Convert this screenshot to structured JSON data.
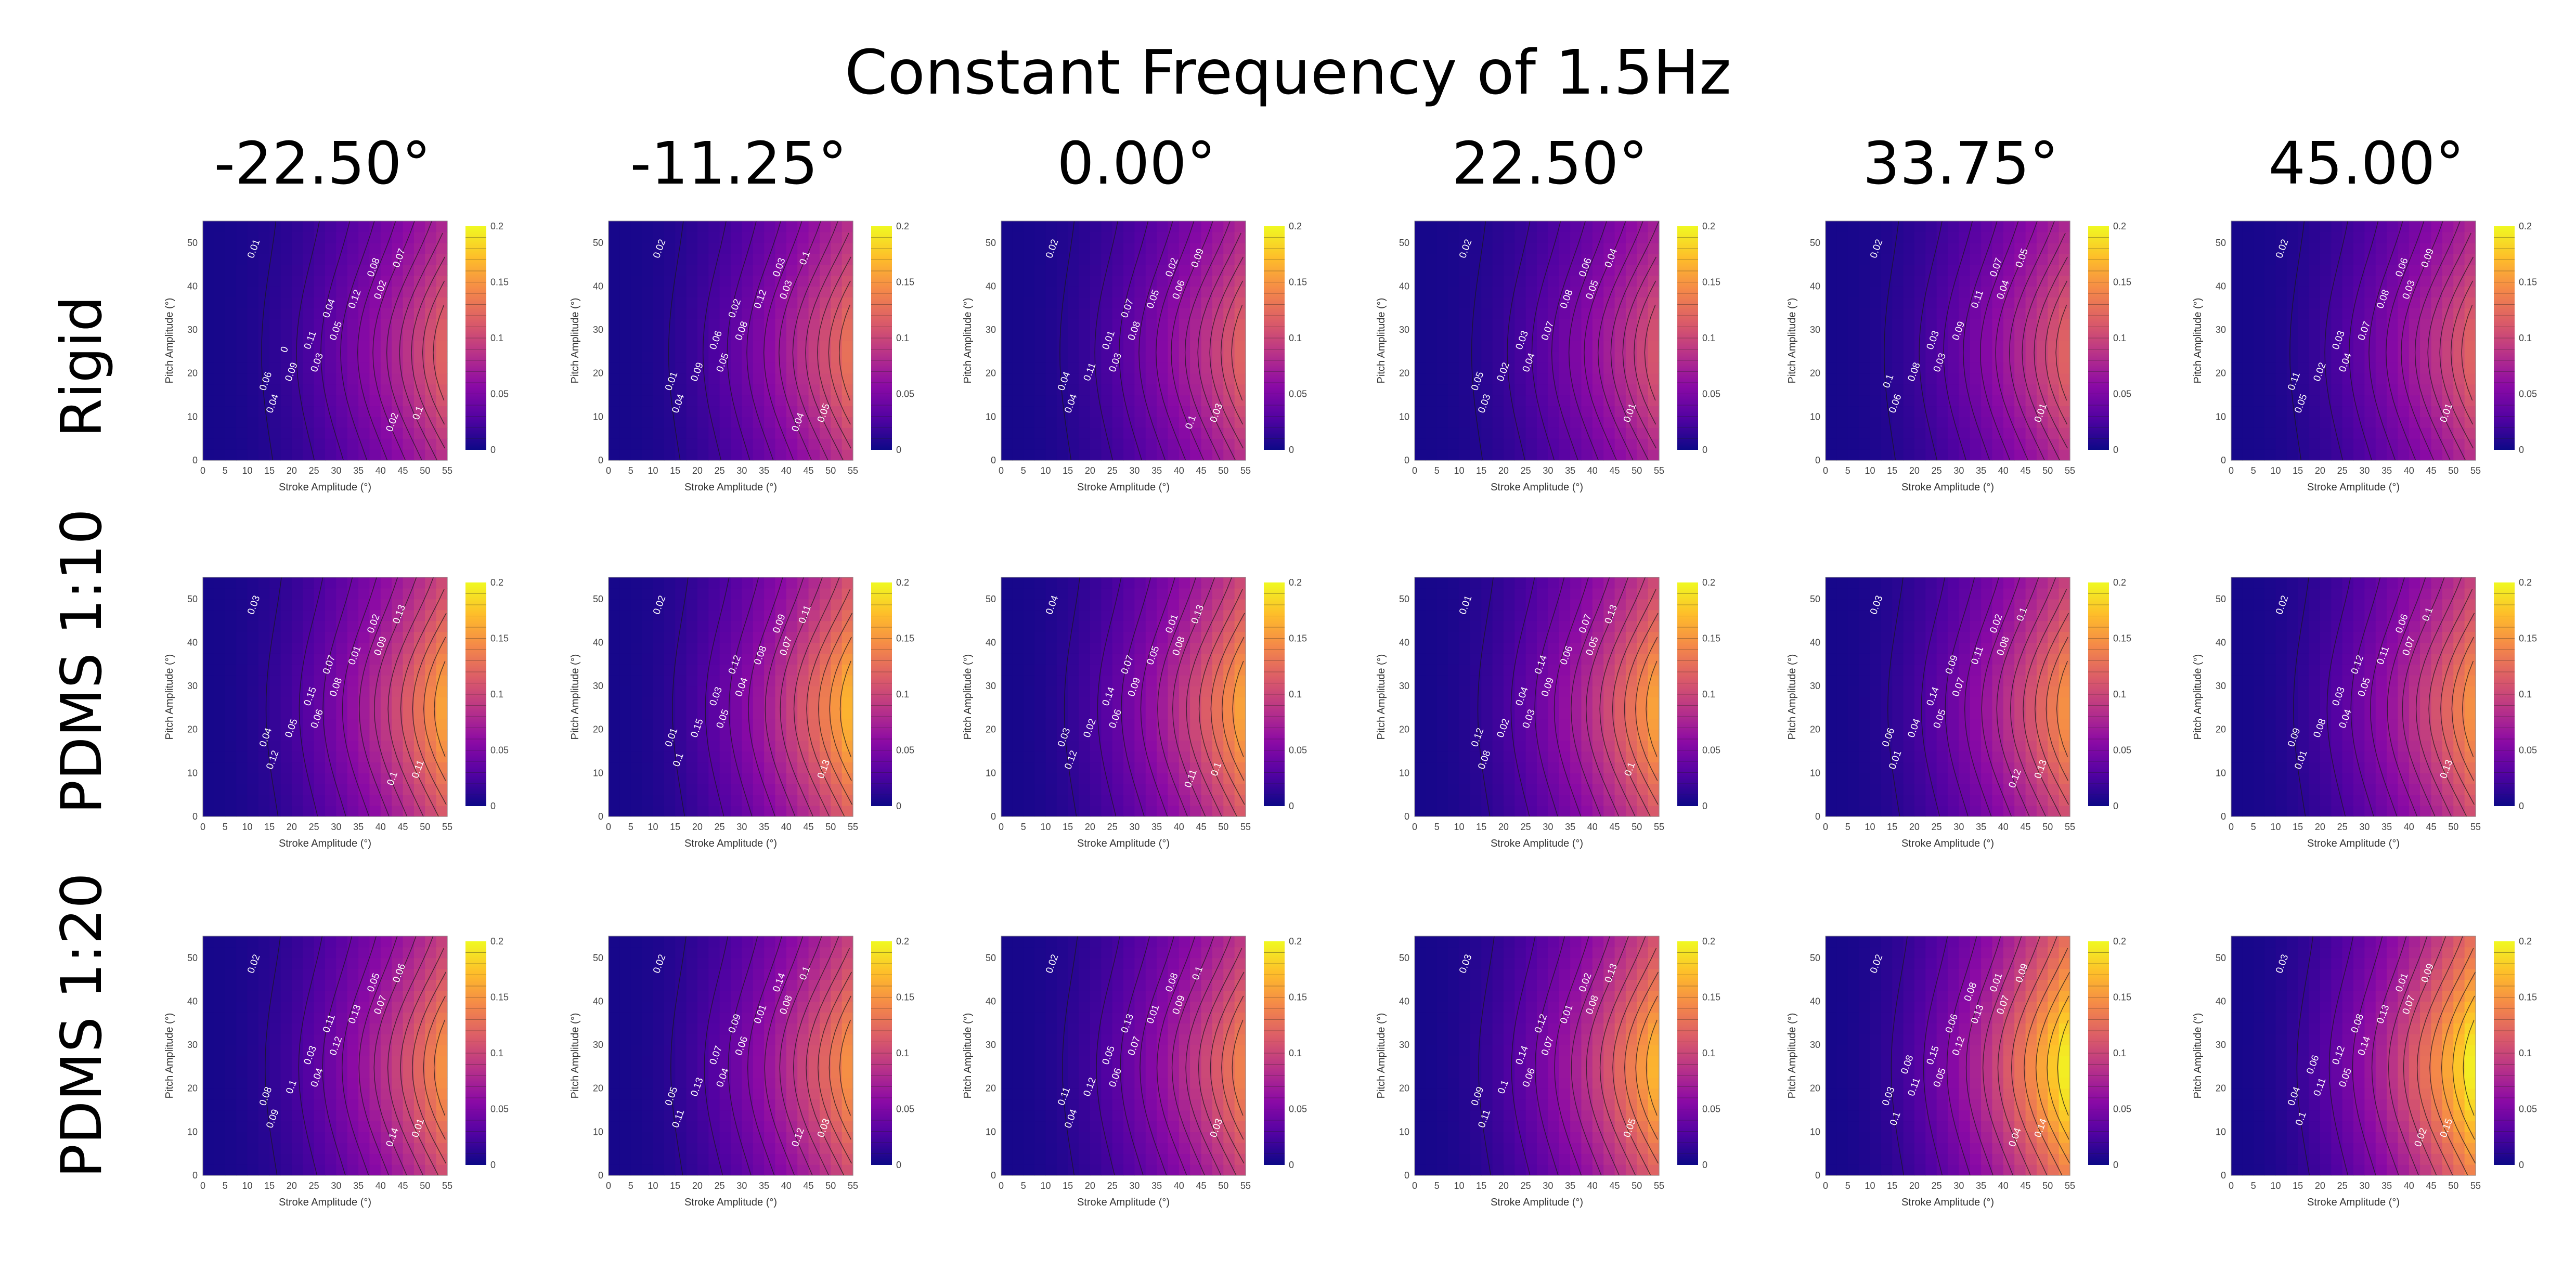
{
  "title": "Constant Frequency of 1.5Hz",
  "columns": [
    "-22.50°",
    "-11.25°",
    "0.00°",
    "22.50°",
    "33.75°",
    "45.00°"
  ],
  "rows": [
    "Rigid",
    "PDMS 1:10",
    "PDMS 1:20"
  ],
  "chart_data": {
    "type": "heatmap",
    "panel_count": 18,
    "x": {
      "label": "Stroke Amplitude (°)",
      "range": [
        0,
        55
      ],
      "ticks": [
        "0",
        "5",
        "10",
        "15",
        "20",
        "25",
        "30",
        "35",
        "40",
        "45",
        "50",
        "55"
      ]
    },
    "y": {
      "label": "Pitch Amplitude (°)",
      "range": [
        0,
        55
      ],
      "ticks": [
        "0",
        "10",
        "20",
        "30",
        "40",
        "50"
      ]
    },
    "colorbar": {
      "range": [
        0,
        0.2
      ],
      "ticks": [
        "0",
        "0.05",
        "0.1",
        "0.15",
        "0.2"
      ],
      "colorscale": [
        "#0d0887",
        "#5302a3",
        "#8b0aa5",
        "#b83289",
        "#db5c68",
        "#f48849",
        "#febd2a",
        "#f0f921"
      ]
    },
    "panels": [
      {
        "row": "Rigid",
        "col": "-22.50°",
        "peak": 0.12,
        "contour_labels": [
          "0.01",
          "0.03",
          "0.02",
          "0.04",
          "0.05",
          "0.07",
          "0.09",
          "0.12",
          "0.1",
          "0.11",
          "0.08",
          "0.06",
          "0.04",
          "0.02",
          "0"
        ]
      },
      {
        "row": "Rigid",
        "col": "-11.25°",
        "peak": 0.13,
        "contour_labels": [
          "0.02",
          "0.05",
          "0.03",
          "0.04",
          "0.08",
          "0.1",
          "0.09",
          "0.12",
          "0.05",
          "0.06",
          "0.03",
          "0.01",
          "0.02",
          "0.04"
        ]
      },
      {
        "row": "Rigid",
        "col": "0.00°",
        "peak": 0.12,
        "contour_labels": [
          "0.02",
          "0.03",
          "0.06",
          "0.04",
          "0.08",
          "0.09",
          "0.11",
          "0.05",
          "0.03",
          "0.01",
          "0.02",
          "0.04",
          "0.07",
          "0.1"
        ]
      },
      {
        "row": "Rigid",
        "col": "22.50°",
        "peak": 0.11,
        "contour_labels": [
          "0.02",
          "0.04",
          "0.05",
          "0.03",
          "0.07",
          "0.04",
          "0.02",
          "0.08",
          "0.01",
          "0.03",
          "0.06",
          "0.05"
        ]
      },
      {
        "row": "Rigid",
        "col": "33.75°",
        "peak": 0.12,
        "contour_labels": [
          "0.02",
          "0.03",
          "0.04",
          "0.06",
          "0.09",
          "0.05",
          "0.08",
          "0.11",
          "0.01",
          "0.03",
          "0.07",
          "0.1"
        ]
      },
      {
        "row": "Rigid",
        "col": "45.00°",
        "peak": 0.12,
        "contour_labels": [
          "0.02",
          "0.04",
          "0.03",
          "0.05",
          "0.07",
          "0.09",
          "0.02",
          "0.08",
          "0.01",
          "0.03",
          "0.06",
          "0.11"
        ]
      },
      {
        "row": "PDMS 1:10",
        "col": "-22.50°",
        "peak": 0.16,
        "contour_labels": [
          "0.03",
          "0.06",
          "0.09",
          "0.12",
          "0.08",
          "0.13",
          "0.05",
          "0.01",
          "0.11",
          "0.15",
          "0.02",
          "0.04",
          "0.07",
          "0.1"
        ]
      },
      {
        "row": "PDMS 1:10",
        "col": "-11.25°",
        "peak": 0.17,
        "contour_labels": [
          "0.02",
          "0.05",
          "0.07",
          "0.1",
          "0.04",
          "0.11",
          "0.15",
          "0.08",
          "0.13",
          "0.03",
          "0.09",
          "0.01",
          "0.12"
        ]
      },
      {
        "row": "PDMS 1:10",
        "col": "0.00°",
        "peak": 0.16,
        "contour_labels": [
          "0.04",
          "0.06",
          "0.08",
          "0.12",
          "0.09",
          "0.13",
          "0.02",
          "0.05",
          "0.1",
          "0.14",
          "0.01",
          "0.03",
          "0.07",
          "0.11"
        ]
      },
      {
        "row": "PDMS 1:10",
        "col": "22.50°",
        "peak": 0.16,
        "contour_labels": [
          "0.01",
          "0.03",
          "0.05",
          "0.08",
          "0.09",
          "0.13",
          "0.02",
          "0.06",
          "0.1",
          "0.04",
          "0.07",
          "0.12",
          "0.14"
        ]
      },
      {
        "row": "PDMS 1:10",
        "col": "33.75°",
        "peak": 0.15,
        "contour_labels": [
          "0.03",
          "0.05",
          "0.08",
          "0.01",
          "0.07",
          "0.1",
          "0.04",
          "0.11",
          "0.13",
          "0.14",
          "0.02",
          "0.06",
          "0.09",
          "0.12"
        ]
      },
      {
        "row": "PDMS 1:10",
        "col": "45.00°",
        "peak": 0.15,
        "contour_labels": [
          "0.02",
          "0.04",
          "0.07",
          "0.01",
          "0.05",
          "0.1",
          "0.08",
          "0.11",
          "0.13",
          "0.03",
          "0.06",
          "0.09",
          "0.12"
        ]
      },
      {
        "row": "PDMS 1:20",
        "col": "-22.50°",
        "peak": 0.15,
        "contour_labels": [
          "0.02",
          "0.04",
          "0.07",
          "0.09",
          "0.12",
          "0.06",
          "0.1",
          "0.13",
          "0.01",
          "0.03",
          "0.05",
          "0.08",
          "0.11",
          "0.14"
        ]
      },
      {
        "row": "PDMS 1:20",
        "col": "-11.25°",
        "peak": 0.15,
        "contour_labels": [
          "0.02",
          "0.04",
          "0.08",
          "0.11",
          "0.06",
          "0.1",
          "0.13",
          "0.01",
          "0.03",
          "0.07",
          "0.14",
          "0.05",
          "0.09",
          "0.12"
        ]
      },
      {
        "row": "PDMS 1:20",
        "col": "0.00°",
        "peak": 0.14,
        "contour_labels": [
          "0.02",
          "0.06",
          "0.09",
          "0.04",
          "0.07",
          "0.1",
          "0.12",
          "0.01",
          "0.03",
          "0.05",
          "0.08",
          "0.11",
          "0.13"
        ]
      },
      {
        "row": "PDMS 1:20",
        "col": "22.50°",
        "peak": 0.17,
        "contour_labels": [
          "0.03",
          "0.06",
          "0.08",
          "0.11",
          "0.07",
          "0.13",
          "0.1",
          "0.01",
          "0.05",
          "0.14",
          "0.02",
          "0.09",
          "0.12"
        ]
      },
      {
        "row": "PDMS 1:20",
        "col": "33.75°",
        "peak": 0.2,
        "contour_labels": [
          "0.02",
          "0.05",
          "0.07",
          "0.1",
          "0.12",
          "0.09",
          "0.11",
          "0.13",
          "0.14",
          "0.15",
          "0.01",
          "0.03",
          "0.06",
          "0.04",
          "0.08",
          "0.08"
        ]
      },
      {
        "row": "PDMS 1:20",
        "col": "45.00°",
        "peak": 0.2,
        "contour_labels": [
          "0.03",
          "0.05",
          "0.07",
          "0.1",
          "0.14",
          "0.09",
          "0.11",
          "0.13",
          "0.15",
          "0.12",
          "0.01",
          "0.04",
          "0.08",
          "0.02",
          "0.06"
        ]
      }
    ]
  }
}
